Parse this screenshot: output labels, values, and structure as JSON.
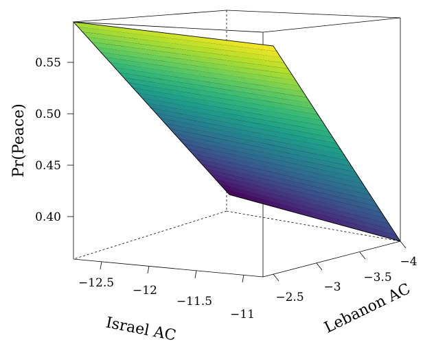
{
  "chart_data": {
    "type": "surface",
    "zlabel": "Pr(Peace)",
    "xlabel": "Israel AC",
    "ylabel": "Lebanon AC",
    "x_ticks": [
      "−12.5",
      "−12",
      "−11.5",
      "−11"
    ],
    "y_ticks": [
      "−2.5",
      "−3",
      "−3.5",
      "−4"
    ],
    "z_ticks": [
      "0.40",
      "0.45",
      "0.50",
      "0.55"
    ],
    "israel_ac_range": [
      -12.8,
      -10.8
    ],
    "lebanon_ac_range": [
      -4.1,
      -2.3
    ],
    "z_range": [
      0.37,
      0.59
    ],
    "surface_corners": {
      "israel_-12.8_lebanon_-4.1": 0.589,
      "israel_-12.8_lebanon_-2.3": 0.564,
      "israel_-10.8_lebanon_-4.1": 0.418,
      "israel_-10.8_lebanon_-2.3": 0.38
    },
    "colormap": [
      "#440154",
      "#482878",
      "#3E4A89",
      "#31688E",
      "#26828E",
      "#1F9E89",
      "#35B779",
      "#6DCD59",
      "#B4DE2C",
      "#FDE725"
    ],
    "grid": false
  }
}
